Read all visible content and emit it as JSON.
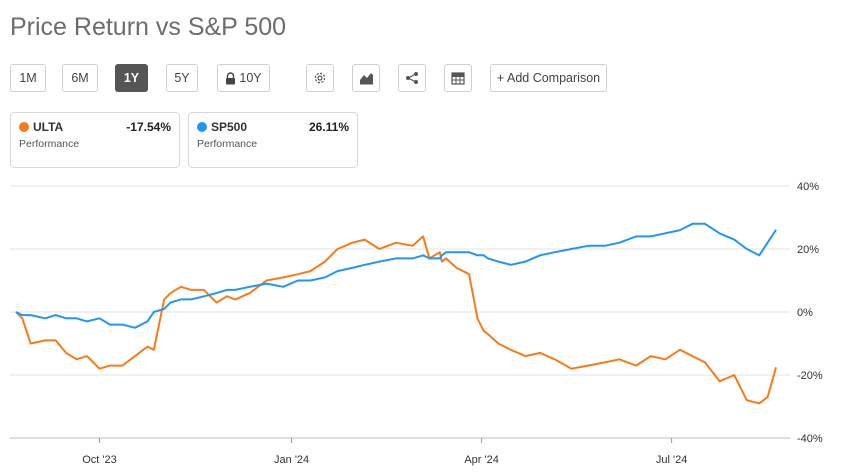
{
  "title": "Price Return vs S&P 500",
  "range_buttons": [
    {
      "label": "1M",
      "active": false
    },
    {
      "label": "6M",
      "active": false
    },
    {
      "label": "1Y",
      "active": true
    },
    {
      "label": "5Y",
      "active": false
    },
    {
      "label": "10Y",
      "active": false,
      "icon": "lock-icon"
    }
  ],
  "toolbar_icons": [
    "gear-icon",
    "chart-type-icon",
    "share-icon",
    "table-icon"
  ],
  "add_comparison_label": "+ Add Comparison",
  "legend_cards": [
    {
      "symbol": "ULTA",
      "value": "-17.54%",
      "sublabel": "Performance",
      "color": "#f57c18"
    },
    {
      "symbol": "SP500",
      "value": "26.11%",
      "sublabel": "Performance",
      "color": "#2196f3"
    }
  ],
  "chart_data": {
    "type": "line",
    "x_tick_labels": [
      "Oct '23",
      "Jan '24",
      "Apr '24",
      "Jul '24"
    ],
    "y_tick_labels": [
      "40%",
      "20%",
      "0%",
      "-20%",
      "-40%"
    ],
    "ylim": [
      -40,
      40
    ],
    "y_ticks": [
      40,
      20,
      0,
      -20,
      -40
    ],
    "grid": true,
    "x_dates": [
      "2023-08-22",
      "2023-08-25",
      "2023-08-29",
      "2023-09-05",
      "2023-09-10",
      "2023-09-15",
      "2023-09-20",
      "2023-09-25",
      "2023-10-01",
      "2023-10-06",
      "2023-10-12",
      "2023-10-18",
      "2023-10-24",
      "2023-10-27",
      "2023-11-01",
      "2023-11-04",
      "2023-11-09",
      "2023-11-14",
      "2023-11-20",
      "2023-11-26",
      "2023-12-01",
      "2023-12-05",
      "2023-12-12",
      "2023-12-20",
      "2023-12-28",
      "2024-01-04",
      "2024-01-10",
      "2024-01-17",
      "2024-01-23",
      "2024-01-30",
      "2024-02-05",
      "2024-02-12",
      "2024-02-20",
      "2024-02-28",
      "2024-03-04",
      "2024-03-07",
      "2024-03-12",
      "2024-03-13",
      "2024-03-15",
      "2024-03-20",
      "2024-03-26",
      "2024-03-30",
      "2024-04-02",
      "2024-04-04",
      "2024-04-09",
      "2024-04-15",
      "2024-04-22",
      "2024-04-29",
      "2024-05-06",
      "2024-05-14",
      "2024-05-22",
      "2024-05-30",
      "2024-06-06",
      "2024-06-14",
      "2024-06-21",
      "2024-06-28",
      "2024-07-05",
      "2024-07-11",
      "2024-07-17",
      "2024-07-24",
      "2024-07-31",
      "2024-08-06",
      "2024-08-12",
      "2024-08-16",
      "2024-08-20"
    ],
    "series": [
      {
        "name": "ULTA",
        "color": "#f57c18",
        "values": [
          0,
          -2,
          -10,
          -9,
          -9,
          -13,
          -15,
          -14,
          -18,
          -17,
          -17,
          -14,
          -11,
          -12,
          4,
          6,
          8,
          7,
          7,
          3,
          5,
          4,
          6,
          10,
          11,
          12,
          13,
          16,
          20,
          22,
          23,
          20,
          22,
          21,
          24,
          17,
          19,
          16,
          17,
          14,
          12,
          -2,
          -6,
          -7,
          -10,
          -12,
          -14,
          -13,
          -15,
          -18,
          -17,
          -16,
          -15,
          -17,
          -14,
          -15,
          -12,
          -14,
          -16,
          -22,
          -20,
          -28,
          -29,
          -27,
          -17.54
        ]
      },
      {
        "name": "SP500",
        "color": "#2196f3",
        "values": [
          0,
          -1,
          -1,
          -2,
          -1,
          -2,
          -2,
          -3,
          -2,
          -4,
          -4,
          -5,
          -3,
          0,
          1,
          3,
          4,
          4,
          5,
          6,
          7,
          7,
          8,
          9,
          8,
          10,
          10,
          11,
          13,
          14,
          15,
          16,
          17,
          17,
          18,
          17,
          17,
          18,
          19,
          19,
          19,
          18,
          18,
          17,
          16,
          15,
          16,
          18,
          19,
          20,
          21,
          21,
          22,
          24,
          24,
          25,
          26,
          28,
          28,
          25,
          23,
          20,
          18,
          22,
          26.11
        ]
      }
    ]
  }
}
